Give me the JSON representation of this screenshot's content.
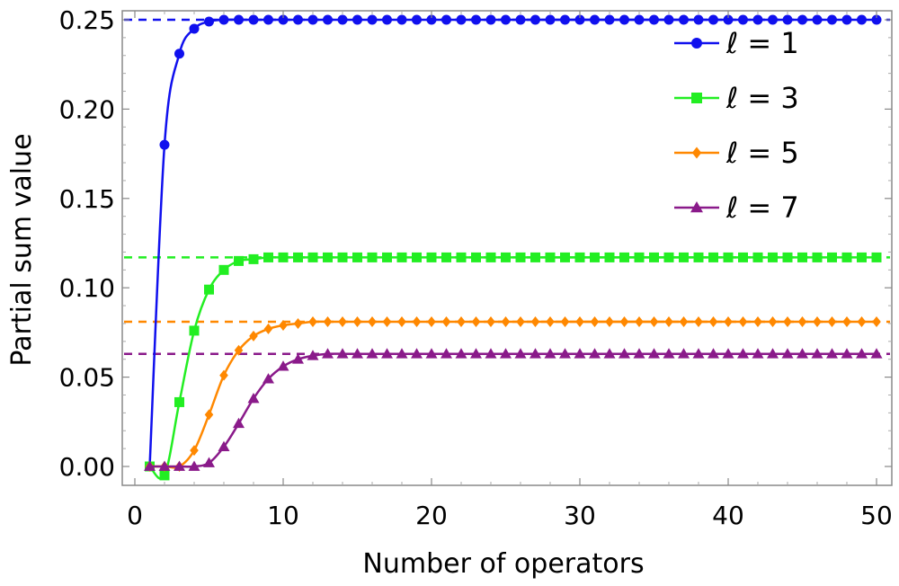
{
  "chart_data": {
    "type": "line",
    "title": "",
    "xlabel": "Number of operators",
    "ylabel": "Partial sum value",
    "xlim": [
      -1,
      51
    ],
    "ylim": [
      -0.01,
      0.255
    ],
    "xticks": [
      0,
      10,
      20,
      30,
      40,
      50
    ],
    "xtick_labels": [
      "0",
      "10",
      "20",
      "30",
      "40",
      "50"
    ],
    "yticks": [
      0.0,
      0.05,
      0.1,
      0.15,
      0.2,
      0.25
    ],
    "ytick_labels": [
      "0.00",
      "0.05",
      "0.10",
      "0.15",
      "0.20",
      "0.25"
    ],
    "legend_position": "top-right",
    "grid": false,
    "series": [
      {
        "name": "ℓ = 1",
        "color": "#1010ee",
        "marker": "circle",
        "asymptote": 0.25,
        "x": [
          1,
          2,
          3,
          4,
          5,
          6,
          7,
          8,
          9,
          10,
          11,
          12,
          13,
          14,
          15,
          16,
          17,
          18,
          19,
          20,
          21,
          22,
          23,
          24,
          25,
          26,
          27,
          28,
          29,
          30,
          31,
          32,
          33,
          34,
          35,
          36,
          37,
          38,
          39,
          40,
          41,
          42,
          43,
          44,
          45,
          46,
          47,
          48,
          49,
          50
        ],
        "values": [
          0.0,
          0.18,
          0.231,
          0.245,
          0.249,
          0.25,
          0.25,
          0.25,
          0.25,
          0.25,
          0.25,
          0.25,
          0.25,
          0.25,
          0.25,
          0.25,
          0.25,
          0.25,
          0.25,
          0.25,
          0.25,
          0.25,
          0.25,
          0.25,
          0.25,
          0.25,
          0.25,
          0.25,
          0.25,
          0.25,
          0.25,
          0.25,
          0.25,
          0.25,
          0.25,
          0.25,
          0.25,
          0.25,
          0.25,
          0.25,
          0.25,
          0.25,
          0.25,
          0.25,
          0.25,
          0.25,
          0.25,
          0.25,
          0.25,
          0.25
        ]
      },
      {
        "name": "ℓ = 3",
        "color": "#22ee22",
        "marker": "square",
        "asymptote": 0.117,
        "x": [
          1,
          2,
          3,
          4,
          5,
          6,
          7,
          8,
          9,
          10,
          11,
          12,
          13,
          14,
          15,
          16,
          17,
          18,
          19,
          20,
          21,
          22,
          23,
          24,
          25,
          26,
          27,
          28,
          29,
          30,
          31,
          32,
          33,
          34,
          35,
          36,
          37,
          38,
          39,
          40,
          41,
          42,
          43,
          44,
          45,
          46,
          47,
          48,
          49,
          50
        ],
        "values": [
          0.0,
          -0.005,
          0.036,
          0.076,
          0.099,
          0.11,
          0.115,
          0.116,
          0.117,
          0.117,
          0.117,
          0.117,
          0.117,
          0.117,
          0.117,
          0.117,
          0.117,
          0.117,
          0.117,
          0.117,
          0.117,
          0.117,
          0.117,
          0.117,
          0.117,
          0.117,
          0.117,
          0.117,
          0.117,
          0.117,
          0.117,
          0.117,
          0.117,
          0.117,
          0.117,
          0.117,
          0.117,
          0.117,
          0.117,
          0.117,
          0.117,
          0.117,
          0.117,
          0.117,
          0.117,
          0.117,
          0.117,
          0.117,
          0.117,
          0.117
        ]
      },
      {
        "name": "ℓ = 5",
        "color": "#ff8800",
        "marker": "diamond",
        "asymptote": 0.081,
        "x": [
          1,
          2,
          3,
          4,
          5,
          6,
          7,
          8,
          9,
          10,
          11,
          12,
          13,
          14,
          15,
          16,
          17,
          18,
          19,
          20,
          21,
          22,
          23,
          24,
          25,
          26,
          27,
          28,
          29,
          30,
          31,
          32,
          33,
          34,
          35,
          36,
          37,
          38,
          39,
          40,
          41,
          42,
          43,
          44,
          45,
          46,
          47,
          48,
          49,
          50
        ],
        "values": [
          0.0,
          0.0,
          0.0,
          0.009,
          0.029,
          0.051,
          0.065,
          0.073,
          0.077,
          0.079,
          0.08,
          0.081,
          0.081,
          0.081,
          0.081,
          0.081,
          0.081,
          0.081,
          0.081,
          0.081,
          0.081,
          0.081,
          0.081,
          0.081,
          0.081,
          0.081,
          0.081,
          0.081,
          0.081,
          0.081,
          0.081,
          0.081,
          0.081,
          0.081,
          0.081,
          0.081,
          0.081,
          0.081,
          0.081,
          0.081,
          0.081,
          0.081,
          0.081,
          0.081,
          0.081,
          0.081,
          0.081,
          0.081,
          0.081,
          0.081
        ]
      },
      {
        "name": "ℓ = 7",
        "color": "#8a1a8a",
        "marker": "triangle",
        "asymptote": 0.063,
        "x": [
          1,
          2,
          3,
          4,
          5,
          6,
          7,
          8,
          9,
          10,
          11,
          12,
          13,
          14,
          15,
          16,
          17,
          18,
          19,
          20,
          21,
          22,
          23,
          24,
          25,
          26,
          27,
          28,
          29,
          30,
          31,
          32,
          33,
          34,
          35,
          36,
          37,
          38,
          39,
          40,
          41,
          42,
          43,
          44,
          45,
          46,
          47,
          48,
          49,
          50
        ],
        "values": [
          0.0,
          0.0,
          0.0,
          0.0,
          0.002,
          0.011,
          0.024,
          0.038,
          0.049,
          0.056,
          0.06,
          0.062,
          0.063,
          0.063,
          0.063,
          0.063,
          0.063,
          0.063,
          0.063,
          0.063,
          0.063,
          0.063,
          0.063,
          0.063,
          0.063,
          0.063,
          0.063,
          0.063,
          0.063,
          0.063,
          0.063,
          0.063,
          0.063,
          0.063,
          0.063,
          0.063,
          0.063,
          0.063,
          0.063,
          0.063,
          0.063,
          0.063,
          0.063,
          0.063,
          0.063,
          0.063,
          0.063,
          0.063,
          0.063,
          0.063
        ]
      }
    ]
  }
}
